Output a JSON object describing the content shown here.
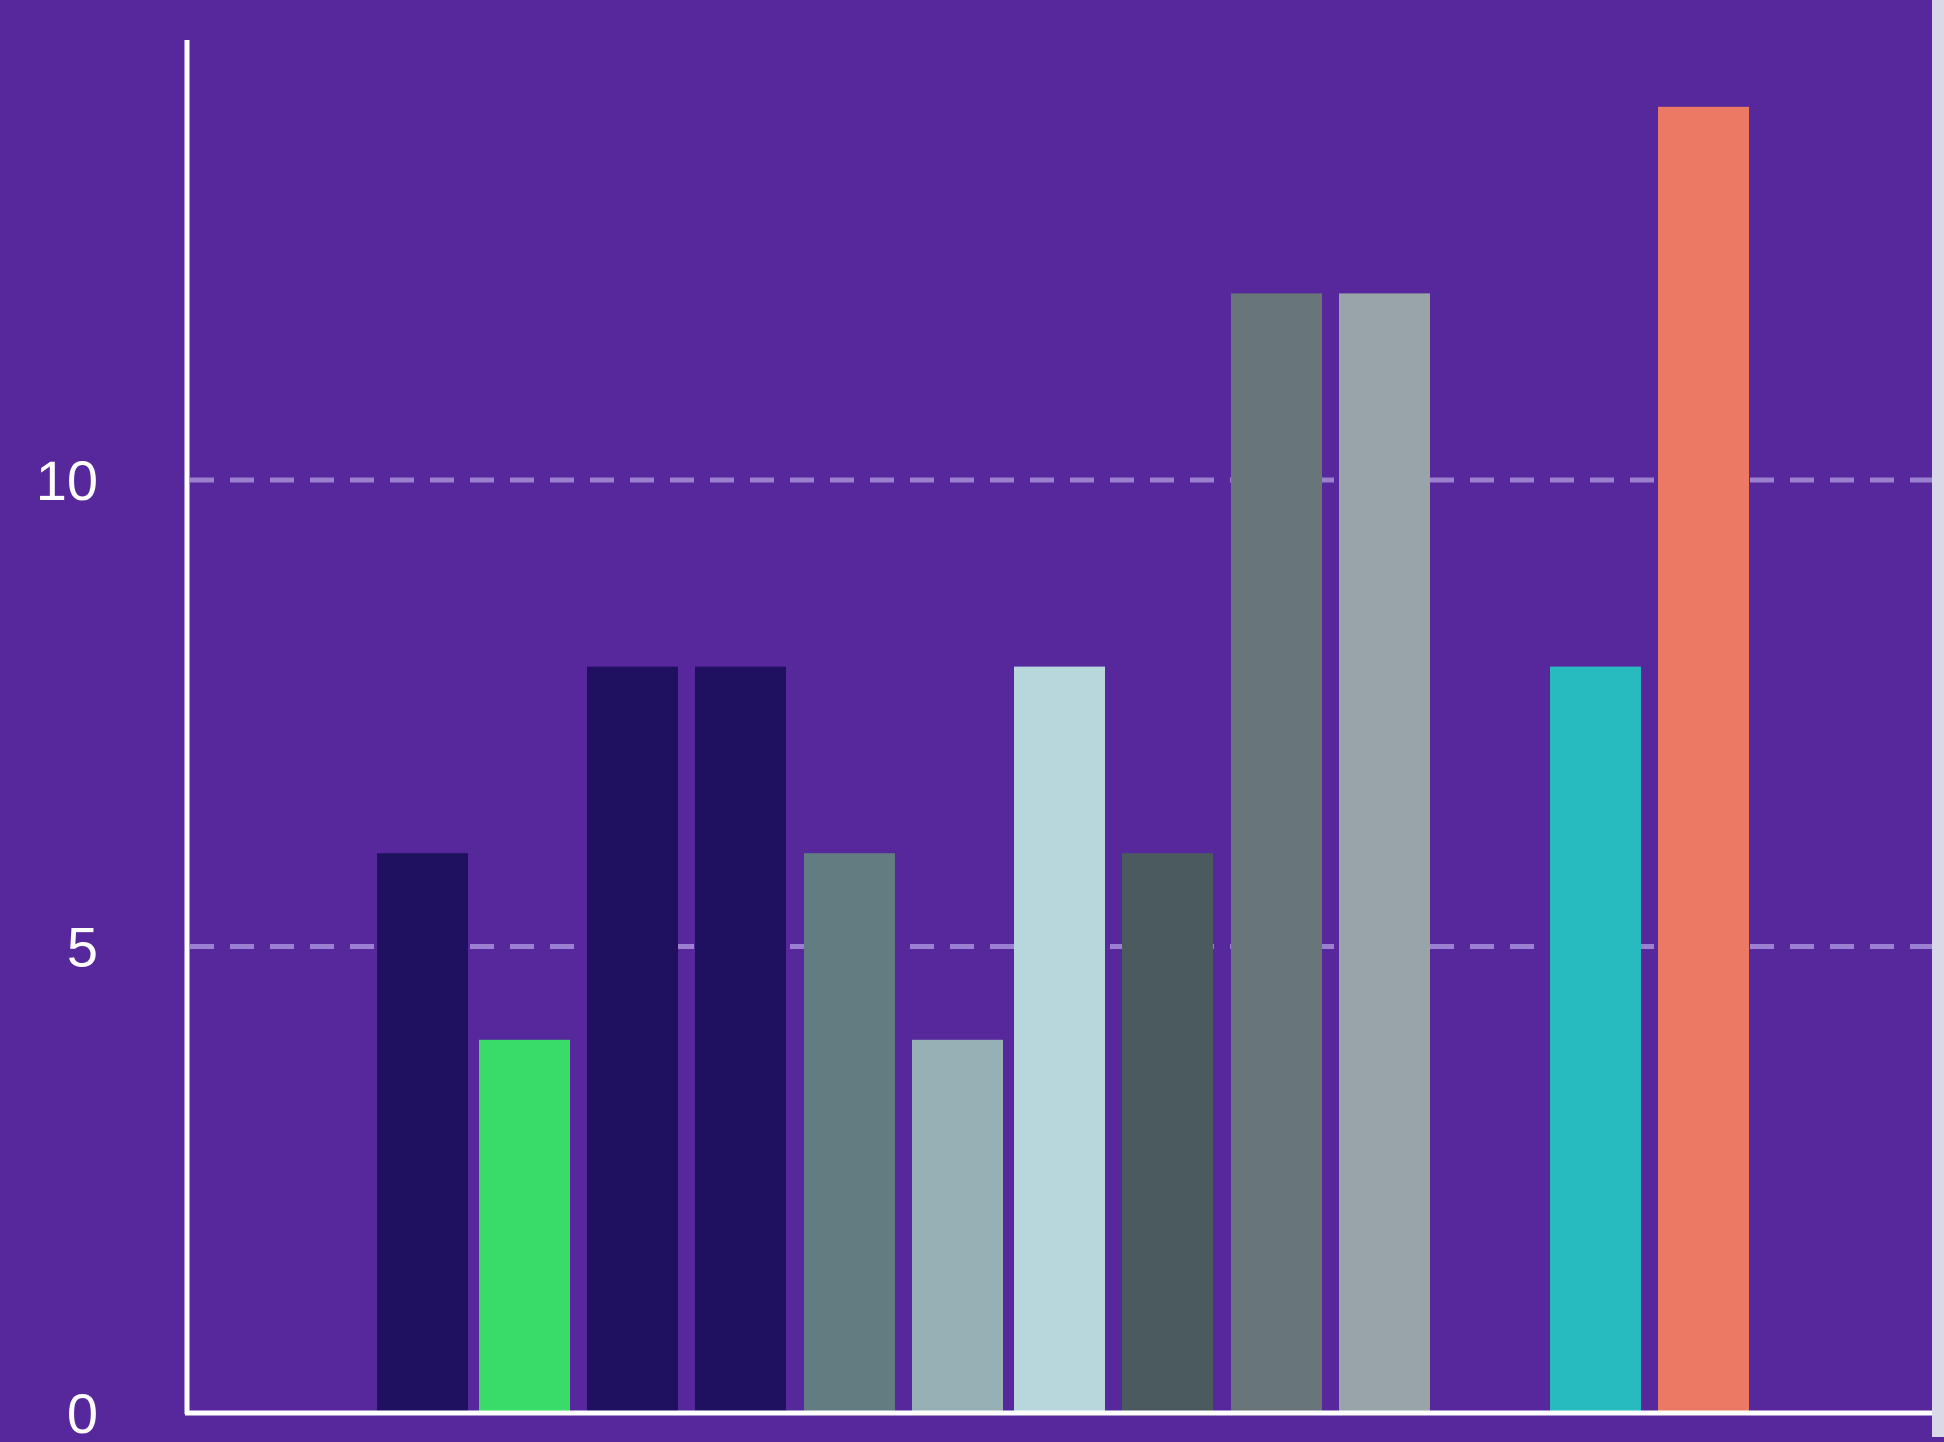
{
  "colors": {
    "background": "#57289c",
    "axis": "#ffffff",
    "grid": "#9b7fd0",
    "right_strip": "#d9d9e8"
  },
  "chart_data": {
    "type": "bar",
    "title": "",
    "xlabel": "",
    "ylabel": "",
    "ylim": [
      0,
      14.7
    ],
    "y_ticks": [
      {
        "value": 0,
        "label": "0"
      },
      {
        "value": 5,
        "label": "5"
      },
      {
        "value": 10,
        "label": "10"
      }
    ],
    "grid": {
      "y": true,
      "style": "dashed",
      "at": [
        5,
        10
      ]
    },
    "legend": null,
    "bars": [
      {
        "value": 6,
        "color": "#201060"
      },
      {
        "value": 4,
        "color": "#39db69"
      },
      {
        "value": 8,
        "color": "#201060"
      },
      {
        "value": 8,
        "color": "#201060"
      },
      {
        "value": 6,
        "color": "#627d82"
      },
      {
        "value": 4,
        "color": "#95b1b6"
      },
      {
        "value": 8,
        "color": "#b8d7dc"
      },
      {
        "value": 6,
        "color": "#4a5a5f"
      },
      {
        "value": 12,
        "color": "#687679"
      },
      {
        "value": 12,
        "color": "#98a4a7"
      },
      {
        "value": 8,
        "color": "#27babf"
      },
      {
        "value": 14,
        "color": "#eb7964"
      }
    ]
  }
}
